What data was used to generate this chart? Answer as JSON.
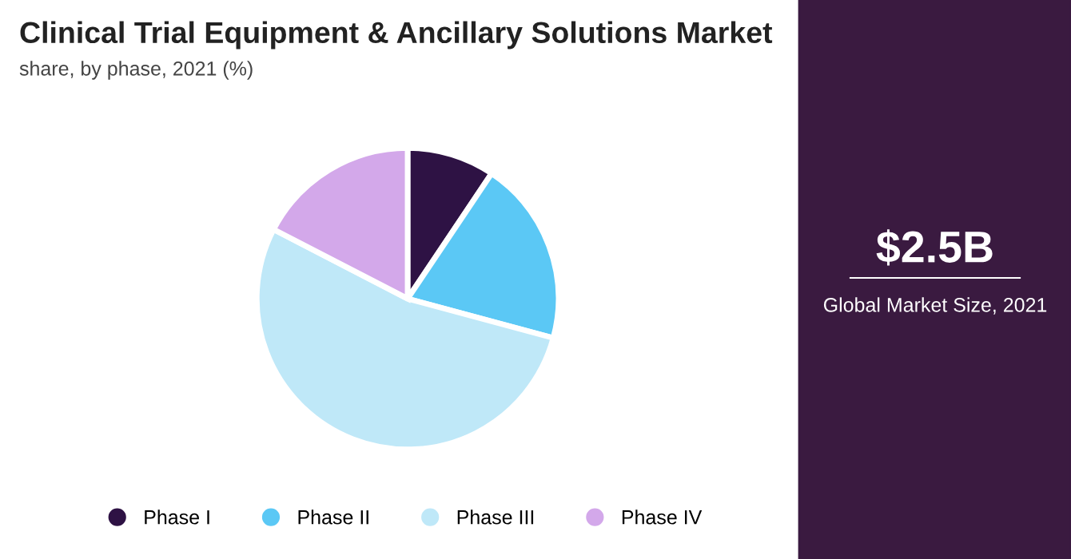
{
  "chart_data": {
    "type": "pie",
    "title": "Clinical Trial Equipment & Ancillary Solutions Market",
    "subtitle": "share, by phase, 2021 (%)",
    "categories": [
      "Phase I",
      "Phase II",
      "Phase III",
      "Phase IV"
    ],
    "values": [
      9.4,
      19.8,
      53.4,
      17.4
    ],
    "colors": [
      "#2e1244",
      "#5bc8f5",
      "#bfe8f8",
      "#d3a8ea"
    ],
    "legend": "bottom",
    "annotations": [
      "$2.5B",
      "Global Market Size, 2021"
    ]
  }
}
